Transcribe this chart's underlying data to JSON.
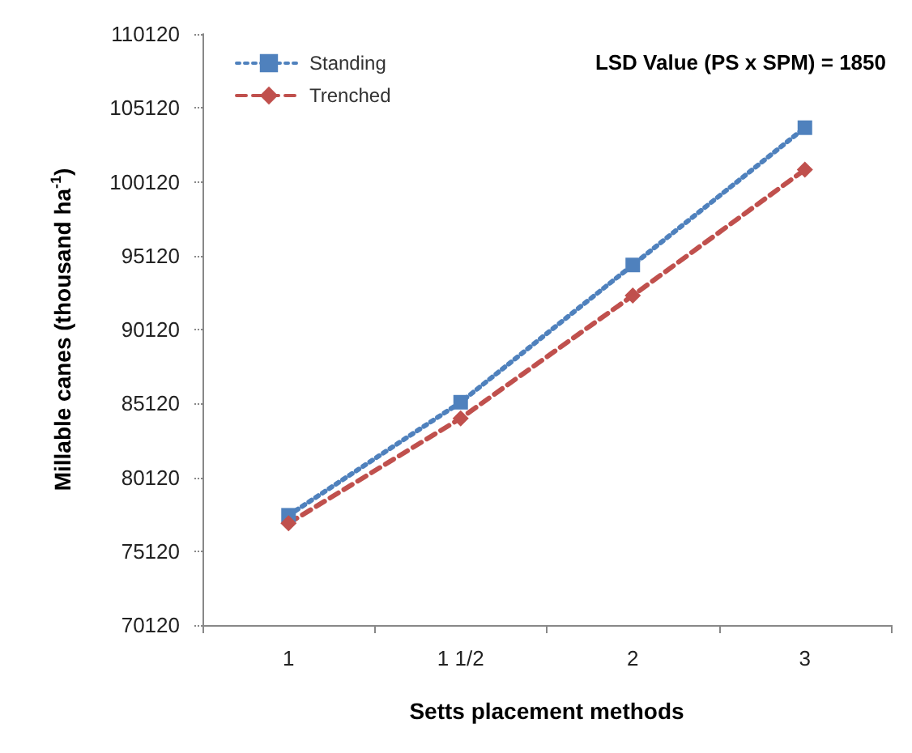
{
  "chart_data": {
    "type": "line",
    "xlabel": "Setts placement methods",
    "ylabel": "Millable canes (thousand ha$^{-1}$)",
    "categories": [
      "1",
      "1 1/2",
      "2",
      "3"
    ],
    "series": [
      {
        "name": "Standing",
        "color": "#4f81bd",
        "values": [
          77550,
          85200,
          94490,
          103780
        ],
        "marker": "square",
        "line_style": "dotted"
      },
      {
        "name": "Trenched",
        "color": "#c0504d",
        "values": [
          77010,
          84110,
          92420,
          100940
        ],
        "marker": "diamond",
        "line_style": "dashed"
      }
    ],
    "ylim": [
      70120,
      110120
    ],
    "yticks": [
      70120,
      75120,
      80120,
      85120,
      90120,
      95120,
      100120,
      105120,
      110120
    ],
    "grid": false,
    "legend": "top left",
    "annotations": [
      "LSD Value (PS x SPM) = 1850"
    ]
  }
}
